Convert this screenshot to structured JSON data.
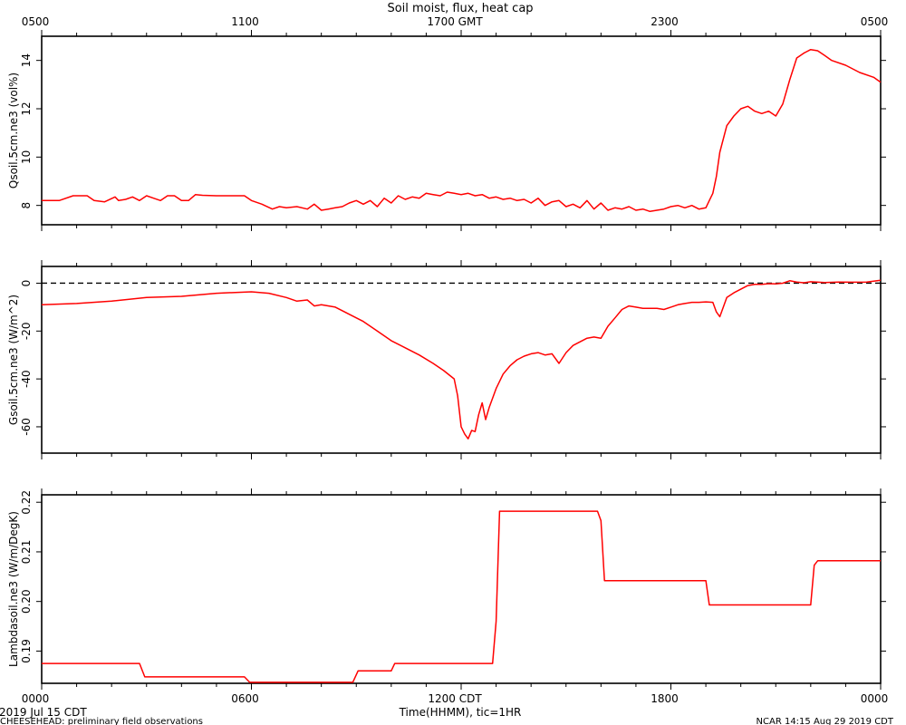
{
  "page": {
    "title": "Soil moist, flux, heat cap",
    "date_label": "2019 Jul 15 CDT",
    "xlabel": "Time(HHMM), tic=1HR",
    "footer_left": "CHEESEHEAD: preliminary field observations",
    "footer_right": "NCAR 14:15 Aug 29 2019 CDT"
  },
  "chart_data": [
    {
      "type": "line",
      "title": "Soil moist, flux, heat cap",
      "ylabel": "Qsoil.5cm.ne3 (vol%)",
      "top_axis_ticks": [
        "0500",
        "1100",
        "1700 GMT",
        "2300",
        "0500"
      ],
      "x_hours_range": [
        0,
        24
      ],
      "ylim": [
        7.2,
        15.0
      ],
      "yticks": [
        8,
        10,
        12,
        14
      ],
      "series": [
        {
          "color": "#ff0000",
          "x": [
            0.0,
            0.5,
            0.9,
            1.3,
            1.5,
            1.8,
            2.1,
            2.2,
            2.4,
            2.6,
            2.8,
            3.0,
            3.2,
            3.4,
            3.6,
            3.8,
            4.0,
            4.2,
            4.4,
            4.6,
            5.0,
            5.4,
            5.8,
            6.0,
            6.3,
            6.6,
            6.8,
            7.0,
            7.3,
            7.6,
            7.8,
            8.0,
            8.2,
            8.4,
            8.6,
            8.8,
            9.0,
            9.2,
            9.4,
            9.6,
            9.8,
            10.0,
            10.2,
            10.4,
            10.6,
            10.8,
            11.0,
            11.2,
            11.4,
            11.6,
            11.8,
            12.0,
            12.2,
            12.4,
            12.6,
            12.8,
            13.0,
            13.2,
            13.4,
            13.6,
            13.8,
            14.0,
            14.2,
            14.4,
            14.6,
            14.8,
            15.0,
            15.2,
            15.4,
            15.6,
            15.8,
            16.0,
            16.2,
            16.4,
            16.6,
            16.8,
            17.0,
            17.2,
            17.4,
            17.6,
            17.8,
            18.0,
            18.2,
            18.4,
            18.6,
            18.8,
            19.0,
            19.1,
            19.2,
            19.3,
            19.4,
            19.6,
            19.8,
            20.0,
            20.2,
            20.4,
            20.6,
            20.8,
            21.0,
            21.2,
            21.4,
            21.6,
            21.8,
            22.0,
            22.2,
            22.4,
            22.6,
            23.0,
            23.4,
            23.8,
            24.0
          ],
          "y": [
            8.2,
            8.2,
            8.4,
            8.4,
            8.2,
            8.15,
            8.35,
            8.2,
            8.25,
            8.35,
            8.2,
            8.4,
            8.3,
            8.2,
            8.4,
            8.4,
            8.2,
            8.2,
            8.45,
            8.42,
            8.4,
            8.4,
            8.4,
            8.2,
            8.05,
            7.85,
            7.95,
            7.9,
            7.95,
            7.85,
            8.05,
            7.8,
            7.85,
            7.9,
            7.95,
            8.1,
            8.2,
            8.05,
            8.2,
            7.95,
            8.3,
            8.1,
            8.4,
            8.25,
            8.35,
            8.3,
            8.5,
            8.45,
            8.4,
            8.55,
            8.5,
            8.45,
            8.5,
            8.4,
            8.45,
            8.3,
            8.35,
            8.25,
            8.3,
            8.2,
            8.25,
            8.1,
            8.3,
            8.0,
            8.15,
            8.2,
            7.95,
            8.05,
            7.9,
            8.2,
            7.85,
            8.1,
            7.8,
            7.9,
            7.85,
            7.95,
            7.8,
            7.85,
            7.75,
            7.8,
            7.85,
            7.95,
            8.0,
            7.9,
            8.0,
            7.85,
            7.9,
            8.2,
            8.5,
            9.2,
            10.2,
            11.3,
            11.7,
            12.0,
            12.1,
            11.9,
            11.8,
            11.9,
            11.7,
            12.2,
            13.2,
            14.1,
            14.3,
            14.45,
            14.4,
            14.2,
            14.0,
            13.8,
            13.5,
            13.3,
            13.1
          ]
        }
      ],
      "reference_line": null,
      "grid": false
    },
    {
      "type": "line",
      "ylabel": "Gsoil.5cm.ne3 (W/m^2)",
      "x_hours_range": [
        0,
        24
      ],
      "ylim": [
        -71,
        7
      ],
      "yticks": [
        0,
        -20,
        -40,
        -60
      ],
      "reference_line": {
        "y": 0,
        "style": "dashed"
      },
      "series": [
        {
          "color": "#ff0000",
          "x": [
            0.0,
            1.0,
            2.0,
            3.0,
            4.0,
            5.0,
            6.0,
            6.5,
            7.0,
            7.3,
            7.6,
            7.8,
            8.0,
            8.4,
            8.8,
            9.2,
            9.6,
            10.0,
            10.4,
            10.8,
            11.2,
            11.5,
            11.8,
            11.9,
            12.0,
            12.1,
            12.2,
            12.3,
            12.4,
            12.5,
            12.6,
            12.7,
            12.8,
            13.0,
            13.2,
            13.4,
            13.6,
            13.8,
            14.0,
            14.2,
            14.4,
            14.6,
            14.8,
            15.0,
            15.2,
            15.4,
            15.6,
            15.8,
            16.0,
            16.2,
            16.4,
            16.6,
            16.8,
            17.0,
            17.2,
            17.4,
            17.6,
            17.8,
            18.0,
            18.2,
            18.4,
            18.6,
            18.8,
            19.0,
            19.2,
            19.3,
            19.4,
            19.6,
            19.8,
            20.0,
            20.2,
            20.4,
            20.6,
            20.8,
            21.0,
            21.2,
            21.4,
            21.6,
            21.8,
            22.0,
            22.4,
            22.8,
            23.2,
            23.6,
            24.0
          ],
          "y": [
            -9.0,
            -8.5,
            -7.5,
            -6.0,
            -5.5,
            -4.2,
            -3.6,
            -4.2,
            -6.0,
            -7.5,
            -7.0,
            -9.5,
            -9.0,
            -10.0,
            -13.0,
            -16.0,
            -20.0,
            -24.0,
            -27.0,
            -30.0,
            -33.5,
            -36.5,
            -40.0,
            -47.0,
            -60.0,
            -63.0,
            -65.0,
            -61.5,
            -62.0,
            -55.0,
            -50.0,
            -57.0,
            -52.0,
            -44.0,
            -38.0,
            -34.5,
            -32.0,
            -30.5,
            -29.5,
            -29.0,
            -30.0,
            -29.5,
            -33.5,
            -29.0,
            -26.0,
            -24.5,
            -23.0,
            -22.5,
            -23.0,
            -18.0,
            -14.5,
            -11.0,
            -9.5,
            -10.0,
            -10.5,
            -10.5,
            -10.5,
            -11.0,
            -10.0,
            -9.0,
            -8.5,
            -8.0,
            -8.0,
            -7.8,
            -8.0,
            -12.0,
            -14.0,
            -6.0,
            -4.0,
            -2.5,
            -1.0,
            -0.5,
            -0.5,
            -0.2,
            -0.3,
            0.0,
            1.0,
            0.5,
            0.2,
            0.6,
            0.3,
            0.5,
            0.4,
            0.5,
            1.2
          ]
        }
      ],
      "grid": false
    },
    {
      "type": "line",
      "ylabel": "Lambdasoil.ne3 (W/m/DegK)",
      "x_ticks": [
        "0000",
        "0600",
        "1200 CDT",
        "1800",
        "0000"
      ],
      "x_hours_range": [
        0,
        24
      ],
      "ylim": [
        0.1835,
        0.2215
      ],
      "yticks": [
        0.19,
        0.2,
        0.21,
        0.22
      ],
      "series": [
        {
          "color": "#ff0000",
          "x": [
            0.0,
            2.8,
            2.95,
            5.8,
            5.95,
            8.9,
            9.05,
            10.0,
            10.1,
            12.9,
            13.0,
            13.1,
            15.9,
            16.0,
            16.1,
            19.0,
            19.1,
            22.0,
            22.1,
            22.2,
            24.0
          ],
          "y": [
            0.1875,
            0.1875,
            0.1848,
            0.1848,
            0.1837,
            0.1837,
            0.186,
            0.186,
            0.1875,
            0.1875,
            0.196,
            0.2182,
            0.2182,
            0.2163,
            0.2042,
            0.2042,
            0.1993,
            0.1993,
            0.2073,
            0.2082,
            0.2082
          ]
        }
      ],
      "grid": false
    }
  ]
}
